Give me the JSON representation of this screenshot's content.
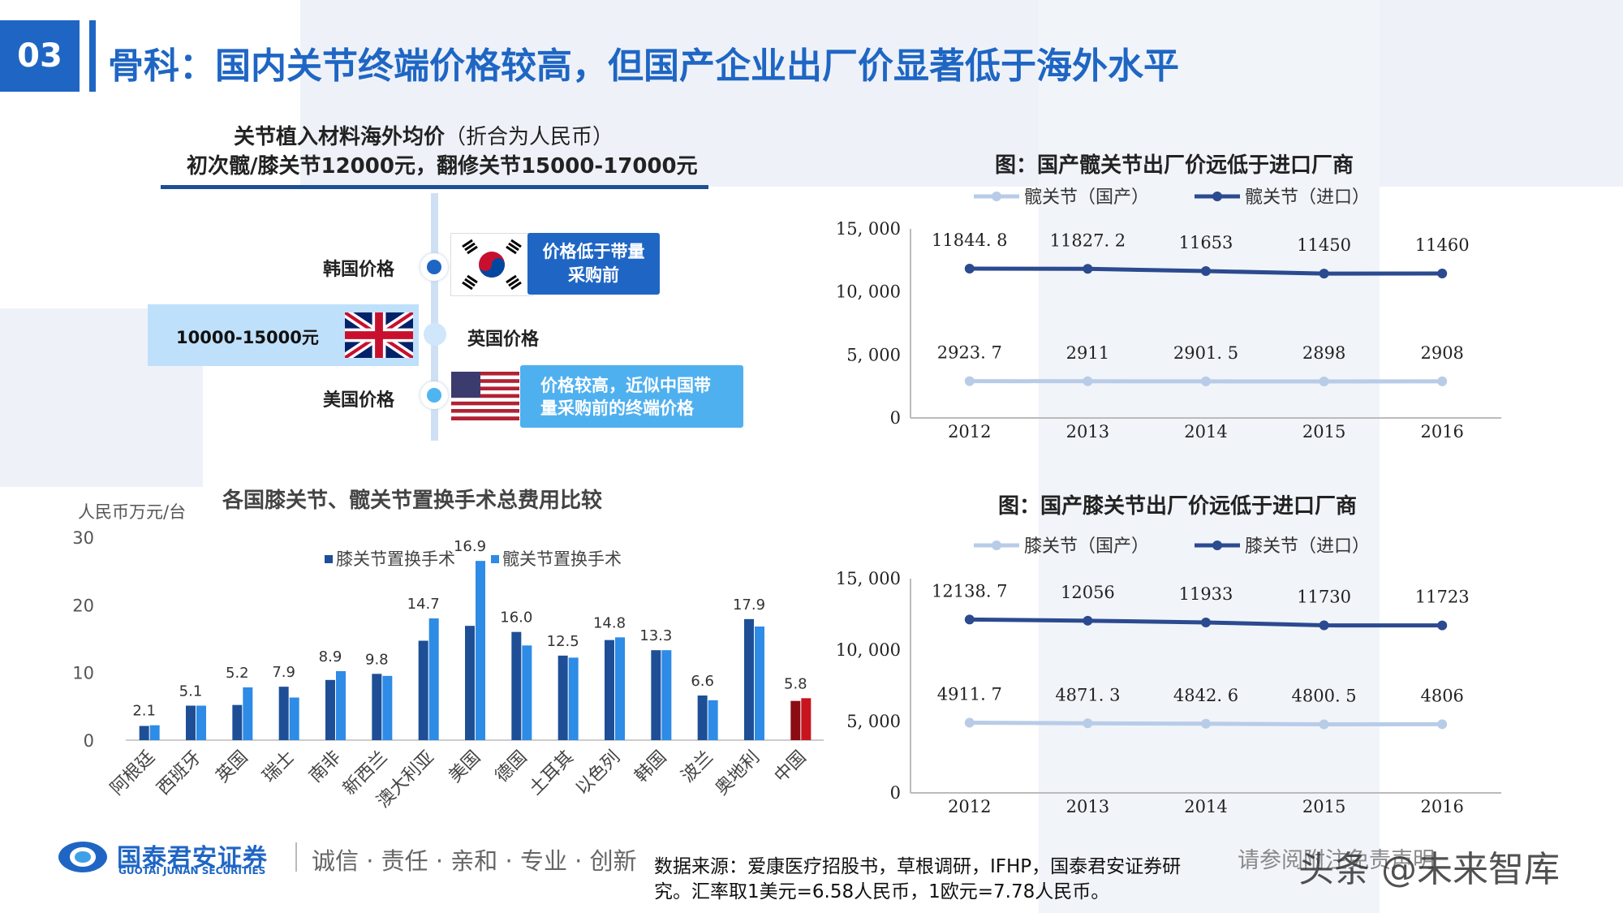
{
  "header": {
    "section_number": "03",
    "title": "骨科：国内关节终端价格较高，但国产企业出厂价显著低于海外水平"
  },
  "overseas": {
    "title_bold": "关节植入材料海外均价",
    "title_note": "（折合为人民币）",
    "subtitle": "初次髋/膝关节12000元，翻修关节15000-17000元",
    "korea_label": "韩国价格",
    "korea_note": "价格低于带量采购前",
    "uk_price": "10000-15000元",
    "uk_label": "英国价格",
    "us_label": "美国价格",
    "us_note": "价格较高，近似中国带量采购前的终端价格"
  },
  "colors": {
    "brand_blue": "#1f66c4",
    "dark_navy": "#1e4f96",
    "bright_blue": "#2e8be6",
    "light_line": "#b8cce8",
    "dark_line": "#2b4a8f",
    "china_dark": "#8b0c14",
    "china_red": "#c8141e"
  },
  "chart_data": [
    {
      "type": "bar",
      "title": "各国膝关节、髋关节置换手术总费用比较",
      "ylabel": "人民币万元/台",
      "ylim": [
        0,
        30
      ],
      "yticks": [
        0,
        10,
        20,
        30
      ],
      "categories": [
        "阿根廷",
        "西班牙",
        "英国",
        "瑞士",
        "南非",
        "新西兰",
        "澳大利亚",
        "美国",
        "德国",
        "土耳其",
        "以色列",
        "韩国",
        "波兰",
        "奥地利",
        "中国"
      ],
      "series": [
        {
          "name": "膝关节置换手术",
          "values": [
            2.1,
            5.1,
            5.2,
            7.9,
            8.9,
            9.8,
            14.7,
            16.9,
            16.0,
            12.5,
            14.8,
            13.3,
            6.6,
            17.9,
            5.8
          ]
        },
        {
          "name": "髋关节置换手术",
          "values": [
            2.2,
            5.1,
            7.8,
            6.3,
            10.2,
            9.5,
            18.0,
            26.5,
            14.0,
            12.2,
            15.2,
            13.3,
            5.9,
            16.8,
            6.2
          ]
        }
      ],
      "data_labels": [
        "2.1",
        "5.1",
        "5.2",
        "7.9",
        "8.9",
        "9.8",
        "14.7",
        "16.9",
        "16.0",
        "12.5",
        "14.8",
        "13.3",
        "6.6",
        "17.9",
        "5.8"
      ],
      "legend": "top"
    },
    {
      "type": "line",
      "title": "图：国产髋关节出厂价远低于进口厂商",
      "x": [
        "2012",
        "2013",
        "2014",
        "2015",
        "2016"
      ],
      "ylim": [
        0,
        15000
      ],
      "yticks": [
        "0",
        "5, 000",
        "10, 000",
        "15, 000"
      ],
      "series": [
        {
          "name": "髋关节（国产）",
          "values": [
            2923.7,
            2911,
            2901.5,
            2898,
            2908
          ],
          "labels": [
            "2923. 7",
            "2911",
            "2901. 5",
            "2898",
            "2908"
          ]
        },
        {
          "name": "髋关节（进口）",
          "values": [
            11844.8,
            11827.2,
            11653,
            11450,
            11460
          ],
          "labels": [
            "11844. 8",
            "11827. 2",
            "11653",
            "11450",
            "11460"
          ]
        }
      ],
      "legend": "top"
    },
    {
      "type": "line",
      "title": "图：国产膝关节出厂价远低于进口厂商",
      "x": [
        "2012",
        "2013",
        "2014",
        "2015",
        "2016"
      ],
      "ylim": [
        0,
        15000
      ],
      "yticks": [
        "0",
        "5, 000",
        "10, 000",
        "15, 000"
      ],
      "series": [
        {
          "name": "膝关节（国产）",
          "values": [
            4911.7,
            4871.3,
            4842.6,
            4800.5,
            4806
          ],
          "labels": [
            "4911. 7",
            "4871. 3",
            "4842. 6",
            "4800. 5",
            "4806"
          ]
        },
        {
          "name": "膝关节（进口）",
          "values": [
            12138.7,
            12056,
            11933,
            11730,
            11723
          ],
          "labels": [
            "12138. 7",
            "12056",
            "11933",
            "11730",
            "11723"
          ]
        }
      ],
      "legend": "top"
    }
  ],
  "footer": {
    "company_cn": "国泰君安证券",
    "company_en": "GUOTAI JUNAN SECURITIES",
    "slogan": "诚信 · 责任 · 亲和 · 专业 · 创新",
    "source_line1": "数据来源：爱康医疗招股书，草根调研，IFHP，国泰君安证券研",
    "source_line2": "究。汇率取1美元=6.58人民币，1欧元=7.78人民币。",
    "disclaimer": "请参阅附注免责声明",
    "watermark": "头条 @未来智库"
  }
}
